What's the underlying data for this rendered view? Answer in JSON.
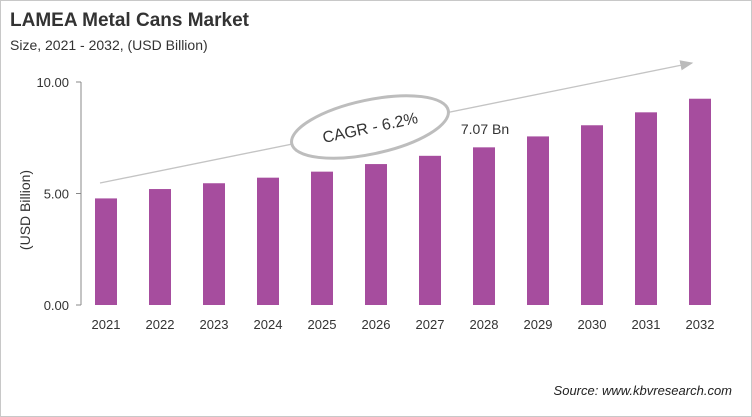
{
  "title": "LAMEA Metal Cans Market",
  "subtitle": "Size, 2021 - 2032, (USD Billion)",
  "source": "Source: www.kbvresearch.com",
  "chart_data": {
    "type": "bar",
    "title": "LAMEA Metal Cans Market",
    "subtitle": "Size, 2021 - 2032, (USD Billion)",
    "xlabel": "",
    "ylabel": "(USD Billion)",
    "ylim": [
      0,
      10
    ],
    "yticks": [
      "0.00",
      "5.00",
      "10.00"
    ],
    "grid": false,
    "categories": [
      "2021",
      "2022",
      "2023",
      "2024",
      "2025",
      "2026",
      "2027",
      "2028",
      "2029",
      "2030",
      "2031",
      "2032"
    ],
    "values": [
      4.78,
      5.2,
      5.46,
      5.71,
      5.98,
      6.32,
      6.69,
      7.07,
      7.56,
      8.06,
      8.64,
      9.25
    ],
    "bar_color": "#a64d9e",
    "annotations": {
      "cagr": "CAGR - 6.2%",
      "value_label": "7.07 Bn",
      "value_label_category": "2028"
    }
  }
}
